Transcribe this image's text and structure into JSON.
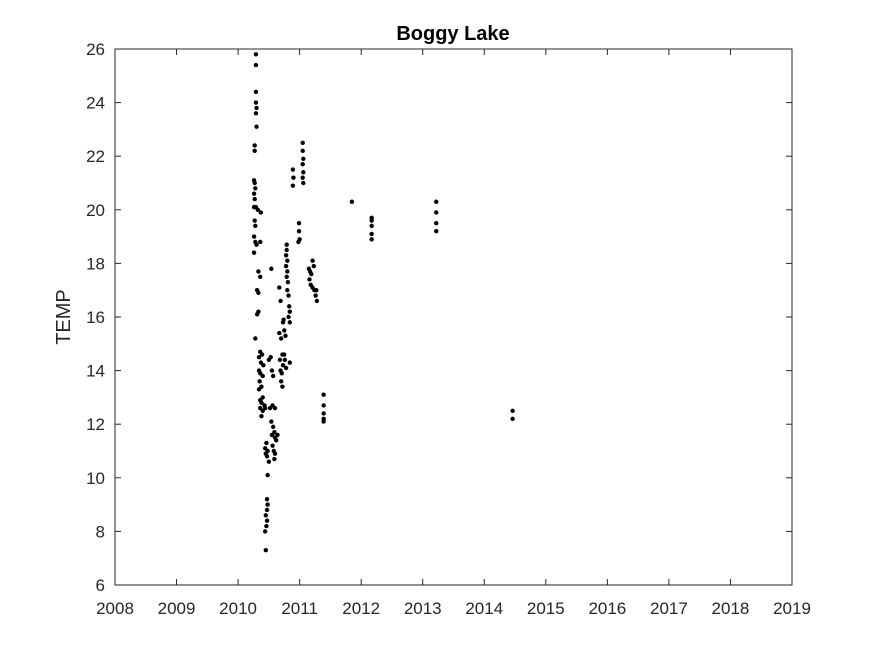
{
  "chart_data": {
    "type": "scatter",
    "title": "Boggy Lake",
    "xlabel": "",
    "ylabel": "TEMP",
    "xlim": [
      2008,
      2019
    ],
    "ylim": [
      6,
      26
    ],
    "x_ticks": [
      "2008",
      "2009",
      "2010",
      "2011",
      "2012",
      "2013",
      "2014",
      "2015",
      "2016",
      "2017",
      "2018",
      "2019"
    ],
    "y_ticks": [
      "6",
      "8",
      "10",
      "12",
      "14",
      "16",
      "18",
      "20",
      "22",
      "24",
      "26"
    ],
    "grid": false,
    "marker_color": "#000000",
    "points": [
      [
        2010.29,
        25.8
      ],
      [
        2010.29,
        25.4
      ],
      [
        2010.29,
        24.4
      ],
      [
        2010.29,
        24.0
      ],
      [
        2010.3,
        23.8
      ],
      [
        2010.29,
        23.6
      ],
      [
        2010.3,
        23.1
      ],
      [
        2010.27,
        22.4
      ],
      [
        2010.27,
        22.2
      ],
      [
        2010.26,
        21.1
      ],
      [
        2010.27,
        21.0
      ],
      [
        2010.28,
        20.8
      ],
      [
        2010.26,
        20.6
      ],
      [
        2010.27,
        20.4
      ],
      [
        2010.26,
        20.1
      ],
      [
        2010.29,
        20.1
      ],
      [
        2010.32,
        20.0
      ],
      [
        2010.37,
        19.9
      ],
      [
        2010.27,
        19.6
      ],
      [
        2010.28,
        19.4
      ],
      [
        2010.26,
        19.0
      ],
      [
        2010.28,
        18.8
      ],
      [
        2010.3,
        18.7
      ],
      [
        2010.36,
        18.8
      ],
      [
        2010.26,
        18.4
      ],
      [
        2010.33,
        17.7
      ],
      [
        2010.36,
        17.5
      ],
      [
        2010.31,
        17.0
      ],
      [
        2010.33,
        16.9
      ],
      [
        2010.33,
        16.2
      ],
      [
        2010.31,
        16.1
      ],
      [
        2010.28,
        15.2
      ],
      [
        2010.36,
        14.7
      ],
      [
        2010.39,
        14.6
      ],
      [
        2010.34,
        14.5
      ],
      [
        2010.37,
        14.3
      ],
      [
        2010.41,
        14.2
      ],
      [
        2010.34,
        14.0
      ],
      [
        2010.36,
        13.9
      ],
      [
        2010.4,
        13.8
      ],
      [
        2010.35,
        13.6
      ],
      [
        2010.38,
        13.4
      ],
      [
        2010.34,
        13.3
      ],
      [
        2010.4,
        13.0
      ],
      [
        2010.36,
        12.9
      ],
      [
        2010.38,
        12.8
      ],
      [
        2010.43,
        12.7
      ],
      [
        2010.36,
        12.6
      ],
      [
        2010.4,
        12.5
      ],
      [
        2010.44,
        12.6
      ],
      [
        2010.38,
        12.3
      ],
      [
        2010.46,
        11.3
      ],
      [
        2010.44,
        11.1
      ],
      [
        2010.48,
        11.0
      ],
      [
        2010.45,
        10.9
      ],
      [
        2010.47,
        10.8
      ],
      [
        2010.5,
        10.6
      ],
      [
        2010.48,
        10.1
      ],
      [
        2010.47,
        9.2
      ],
      [
        2010.48,
        9.0
      ],
      [
        2010.47,
        8.8
      ],
      [
        2010.45,
        8.6
      ],
      [
        2010.47,
        8.4
      ],
      [
        2010.46,
        8.2
      ],
      [
        2010.44,
        8.0
      ],
      [
        2010.45,
        7.3
      ],
      [
        2010.5,
        14.4
      ],
      [
        2010.53,
        14.5
      ],
      [
        2010.55,
        14.0
      ],
      [
        2010.57,
        13.8
      ],
      [
        2010.52,
        12.6
      ],
      [
        2010.56,
        12.7
      ],
      [
        2010.6,
        12.6
      ],
      [
        2010.54,
        12.1
      ],
      [
        2010.57,
        11.9
      ],
      [
        2010.59,
        11.7
      ],
      [
        2010.55,
        11.6
      ],
      [
        2010.6,
        11.5
      ],
      [
        2010.64,
        11.6
      ],
      [
        2010.62,
        11.4
      ],
      [
        2010.56,
        11.2
      ],
      [
        2010.58,
        11.0
      ],
      [
        2010.6,
        10.9
      ],
      [
        2010.59,
        10.7
      ],
      [
        2010.54,
        17.8
      ],
      [
        2010.67,
        17.1
      ],
      [
        2010.69,
        16.6
      ],
      [
        2010.67,
        15.4
      ],
      [
        2010.7,
        15.2
      ],
      [
        2010.72,
        14.6
      ],
      [
        2010.68,
        14.4
      ],
      [
        2010.73,
        14.2
      ],
      [
        2010.69,
        14.0
      ],
      [
        2010.71,
        13.9
      ],
      [
        2010.7,
        13.6
      ],
      [
        2010.72,
        13.4
      ],
      [
        2010.75,
        14.6
      ],
      [
        2010.76,
        14.4
      ],
      [
        2010.78,
        14.1
      ],
      [
        2010.73,
        15.8
      ],
      [
        2010.75,
        15.5
      ],
      [
        2010.77,
        15.3
      ],
      [
        2010.74,
        15.9
      ],
      [
        2010.84,
        14.3
      ],
      [
        2010.79,
        18.7
      ],
      [
        2010.79,
        18.5
      ],
      [
        2010.78,
        18.3
      ],
      [
        2010.8,
        18.1
      ],
      [
        2010.78,
        17.9
      ],
      [
        2010.8,
        17.7
      ],
      [
        2010.79,
        17.5
      ],
      [
        2010.81,
        17.3
      ],
      [
        2010.8,
        17.0
      ],
      [
        2010.82,
        16.8
      ],
      [
        2010.83,
        16.4
      ],
      [
        2010.84,
        16.2
      ],
      [
        2010.82,
        16.0
      ],
      [
        2010.84,
        15.8
      ],
      [
        2010.89,
        21.5
      ],
      [
        2010.9,
        21.2
      ],
      [
        2010.89,
        20.9
      ],
      [
        2010.99,
        19.5
      ],
      [
        2010.99,
        19.2
      ],
      [
        2011.0,
        18.9
      ],
      [
        2010.98,
        18.8
      ],
      [
        2011.05,
        22.5
      ],
      [
        2011.05,
        22.2
      ],
      [
        2011.06,
        21.9
      ],
      [
        2011.05,
        21.7
      ],
      [
        2011.06,
        21.4
      ],
      [
        2011.05,
        21.2
      ],
      [
        2011.06,
        21.0
      ],
      [
        2011.15,
        17.8
      ],
      [
        2011.17,
        17.7
      ],
      [
        2011.19,
        17.6
      ],
      [
        2011.21,
        18.1
      ],
      [
        2011.23,
        17.9
      ],
      [
        2011.16,
        17.4
      ],
      [
        2011.18,
        17.2
      ],
      [
        2011.21,
        17.1
      ],
      [
        2011.24,
        17.0
      ],
      [
        2011.27,
        17.0
      ],
      [
        2011.26,
        16.8
      ],
      [
        2011.28,
        16.6
      ],
      [
        2011.39,
        13.1
      ],
      [
        2011.39,
        12.7
      ],
      [
        2011.39,
        12.4
      ],
      [
        2011.39,
        12.2
      ],
      [
        2011.39,
        12.1
      ],
      [
        2011.85,
        20.3
      ],
      [
        2012.17,
        19.7
      ],
      [
        2012.17,
        19.6
      ],
      [
        2012.17,
        19.4
      ],
      [
        2012.17,
        19.1
      ],
      [
        2012.17,
        18.9
      ],
      [
        2013.22,
        20.3
      ],
      [
        2013.22,
        19.9
      ],
      [
        2013.22,
        19.5
      ],
      [
        2013.22,
        19.2
      ],
      [
        2014.46,
        12.5
      ],
      [
        2014.46,
        12.2
      ]
    ]
  }
}
